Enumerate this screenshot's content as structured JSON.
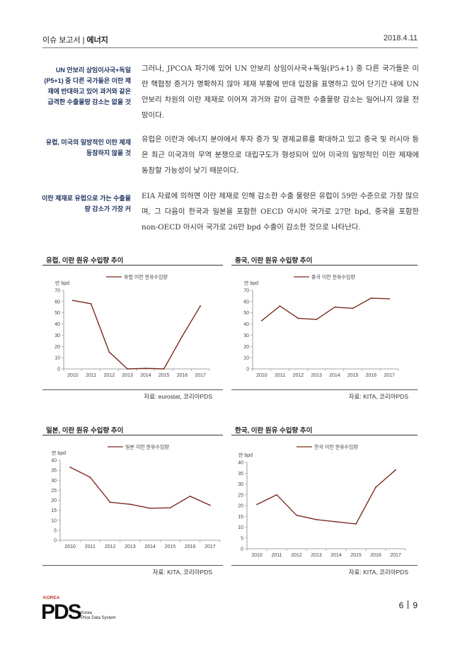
{
  "header": {
    "report": "이슈 보고서",
    "sep": "|",
    "section": "에너지",
    "date": "2018.4.11"
  },
  "notes": [
    "UN 안보리 상임이사국+독일(P5+1) 중 다른 국가들은 이란 제재에 반대하고 있어 과거와 같은 급격한 수출물량 감소는 없을 것",
    "유럽, 미국의 일방적인 이란 제재 동참하지 않을 것",
    "이란 제재로 유럽으로 가는 수출물량 감소가 가장 커"
  ],
  "paragraphs": [
    "그러나, JPCOA 파기에 있어 UN 안보리 상임이사국+독일(P5+1) 중 다른 국가들은 이란 핵협정 증거가 명확하지 않아 제재 부활에 반대 입장을 표명하고 있어 단기간 내에 UN 안보리 차원의 이란 제재로 이어져 과거와 같이 급격한 수출물량 감소는 일어나지 않을 전망이다.",
    "유럽은 이란과 에너지 분야에서 투자 증가 및 경제교류를 확대하고 있고 중국 및 러시아 등은 최근 미국과의 무역 분쟁으로 대립구도가 형성되어 있어 미국의 일방적인 이란 제재에 동참할 가능성이 낮기 때문이다.",
    "EIA 자료에 의하면 이란 제재로 인해 감소한 수출 물량은 유럽이 59만 수준으로 가장 많으며, 그 다음이 한국과 일본을 포함한 OECD 아시아 국가로 27만 bpd, 중국을 포함한 non-OECD 아시아 국가로 26만 bpd 수출이 감소한 것으로 나타난다."
  ],
  "chart_data": [
    {
      "type": "line",
      "title": "유럽, 이란 원유 수입량 추이",
      "unit": "만 bpd",
      "categories": [
        "2010",
        "2011",
        "2012",
        "2013",
        "2014",
        "2015",
        "2016",
        "2017"
      ],
      "series": [
        {
          "name": "유럽 이란 원유수입량",
          "values": [
            61,
            58,
            15,
            0,
            0.5,
            0,
            29,
            56
          ]
        }
      ],
      "ylim": [
        0,
        70
      ],
      "yticks": [
        0,
        10,
        20,
        30,
        40,
        50,
        60,
        70
      ],
      "legend": "top",
      "source": "자료: eurostat, 코리아PDS"
    },
    {
      "type": "line",
      "title": "중국, 이란 원유 수입량 추이",
      "unit": "만 bpd",
      "categories": [
        "2010",
        "2011",
        "2012",
        "2013",
        "2014",
        "2015",
        "2016",
        "2017"
      ],
      "series": [
        {
          "name": "중국 이란 원유수입량",
          "values": [
            43,
            56,
            45,
            44,
            55,
            54,
            63,
            62.5
          ]
        }
      ],
      "ylim": [
        0,
        70
      ],
      "yticks": [
        0,
        10,
        20,
        30,
        40,
        50,
        60,
        70
      ],
      "legend": "top",
      "source": "자료: KITA, 코리아PDS"
    },
    {
      "type": "line",
      "title": "일본, 이란 원유 수입량 추이",
      "unit": "만 bpd",
      "categories": [
        "2010",
        "2011",
        "2012",
        "2013",
        "2014",
        "2015",
        "2016",
        "2017"
      ],
      "series": [
        {
          "name": "일본 이란 원유수입량",
          "values": [
            36.5,
            31.5,
            19,
            18,
            16,
            16.2,
            22,
            17.5
          ]
        }
      ],
      "ylim": [
        0,
        40
      ],
      "yticks": [
        0,
        5,
        10,
        15,
        20,
        25,
        30,
        35,
        40
      ],
      "legend": "top",
      "source": "자료: KITA, 코리아PDS"
    },
    {
      "type": "line",
      "title": "한국, 이란 원유 수입량 추이",
      "unit": "만 bpd",
      "categories": [
        "2010",
        "2011",
        "2012",
        "2013",
        "2014",
        "2015",
        "2016",
        "2017"
      ],
      "series": [
        {
          "name": "한국 이란 원유수입량",
          "values": [
            20.5,
            25,
            15.5,
            13.5,
            12.5,
            11.5,
            28.5,
            36.5
          ]
        }
      ],
      "ylim": [
        0,
        40
      ],
      "yticks": [
        0,
        5,
        10,
        15,
        20,
        25,
        30,
        35,
        40
      ],
      "legend": "top",
      "source": "자료: KITA, 코리아PDS"
    }
  ],
  "footer": {
    "logo_top": "KOREA",
    "logo_mark": "PDS",
    "logo_line1": "Korea",
    "logo_line2": "Price Data System",
    "page": "6",
    "total": "9"
  },
  "colors": {
    "series_line": "#7b2a1f",
    "note_text": "#1f3560"
  }
}
